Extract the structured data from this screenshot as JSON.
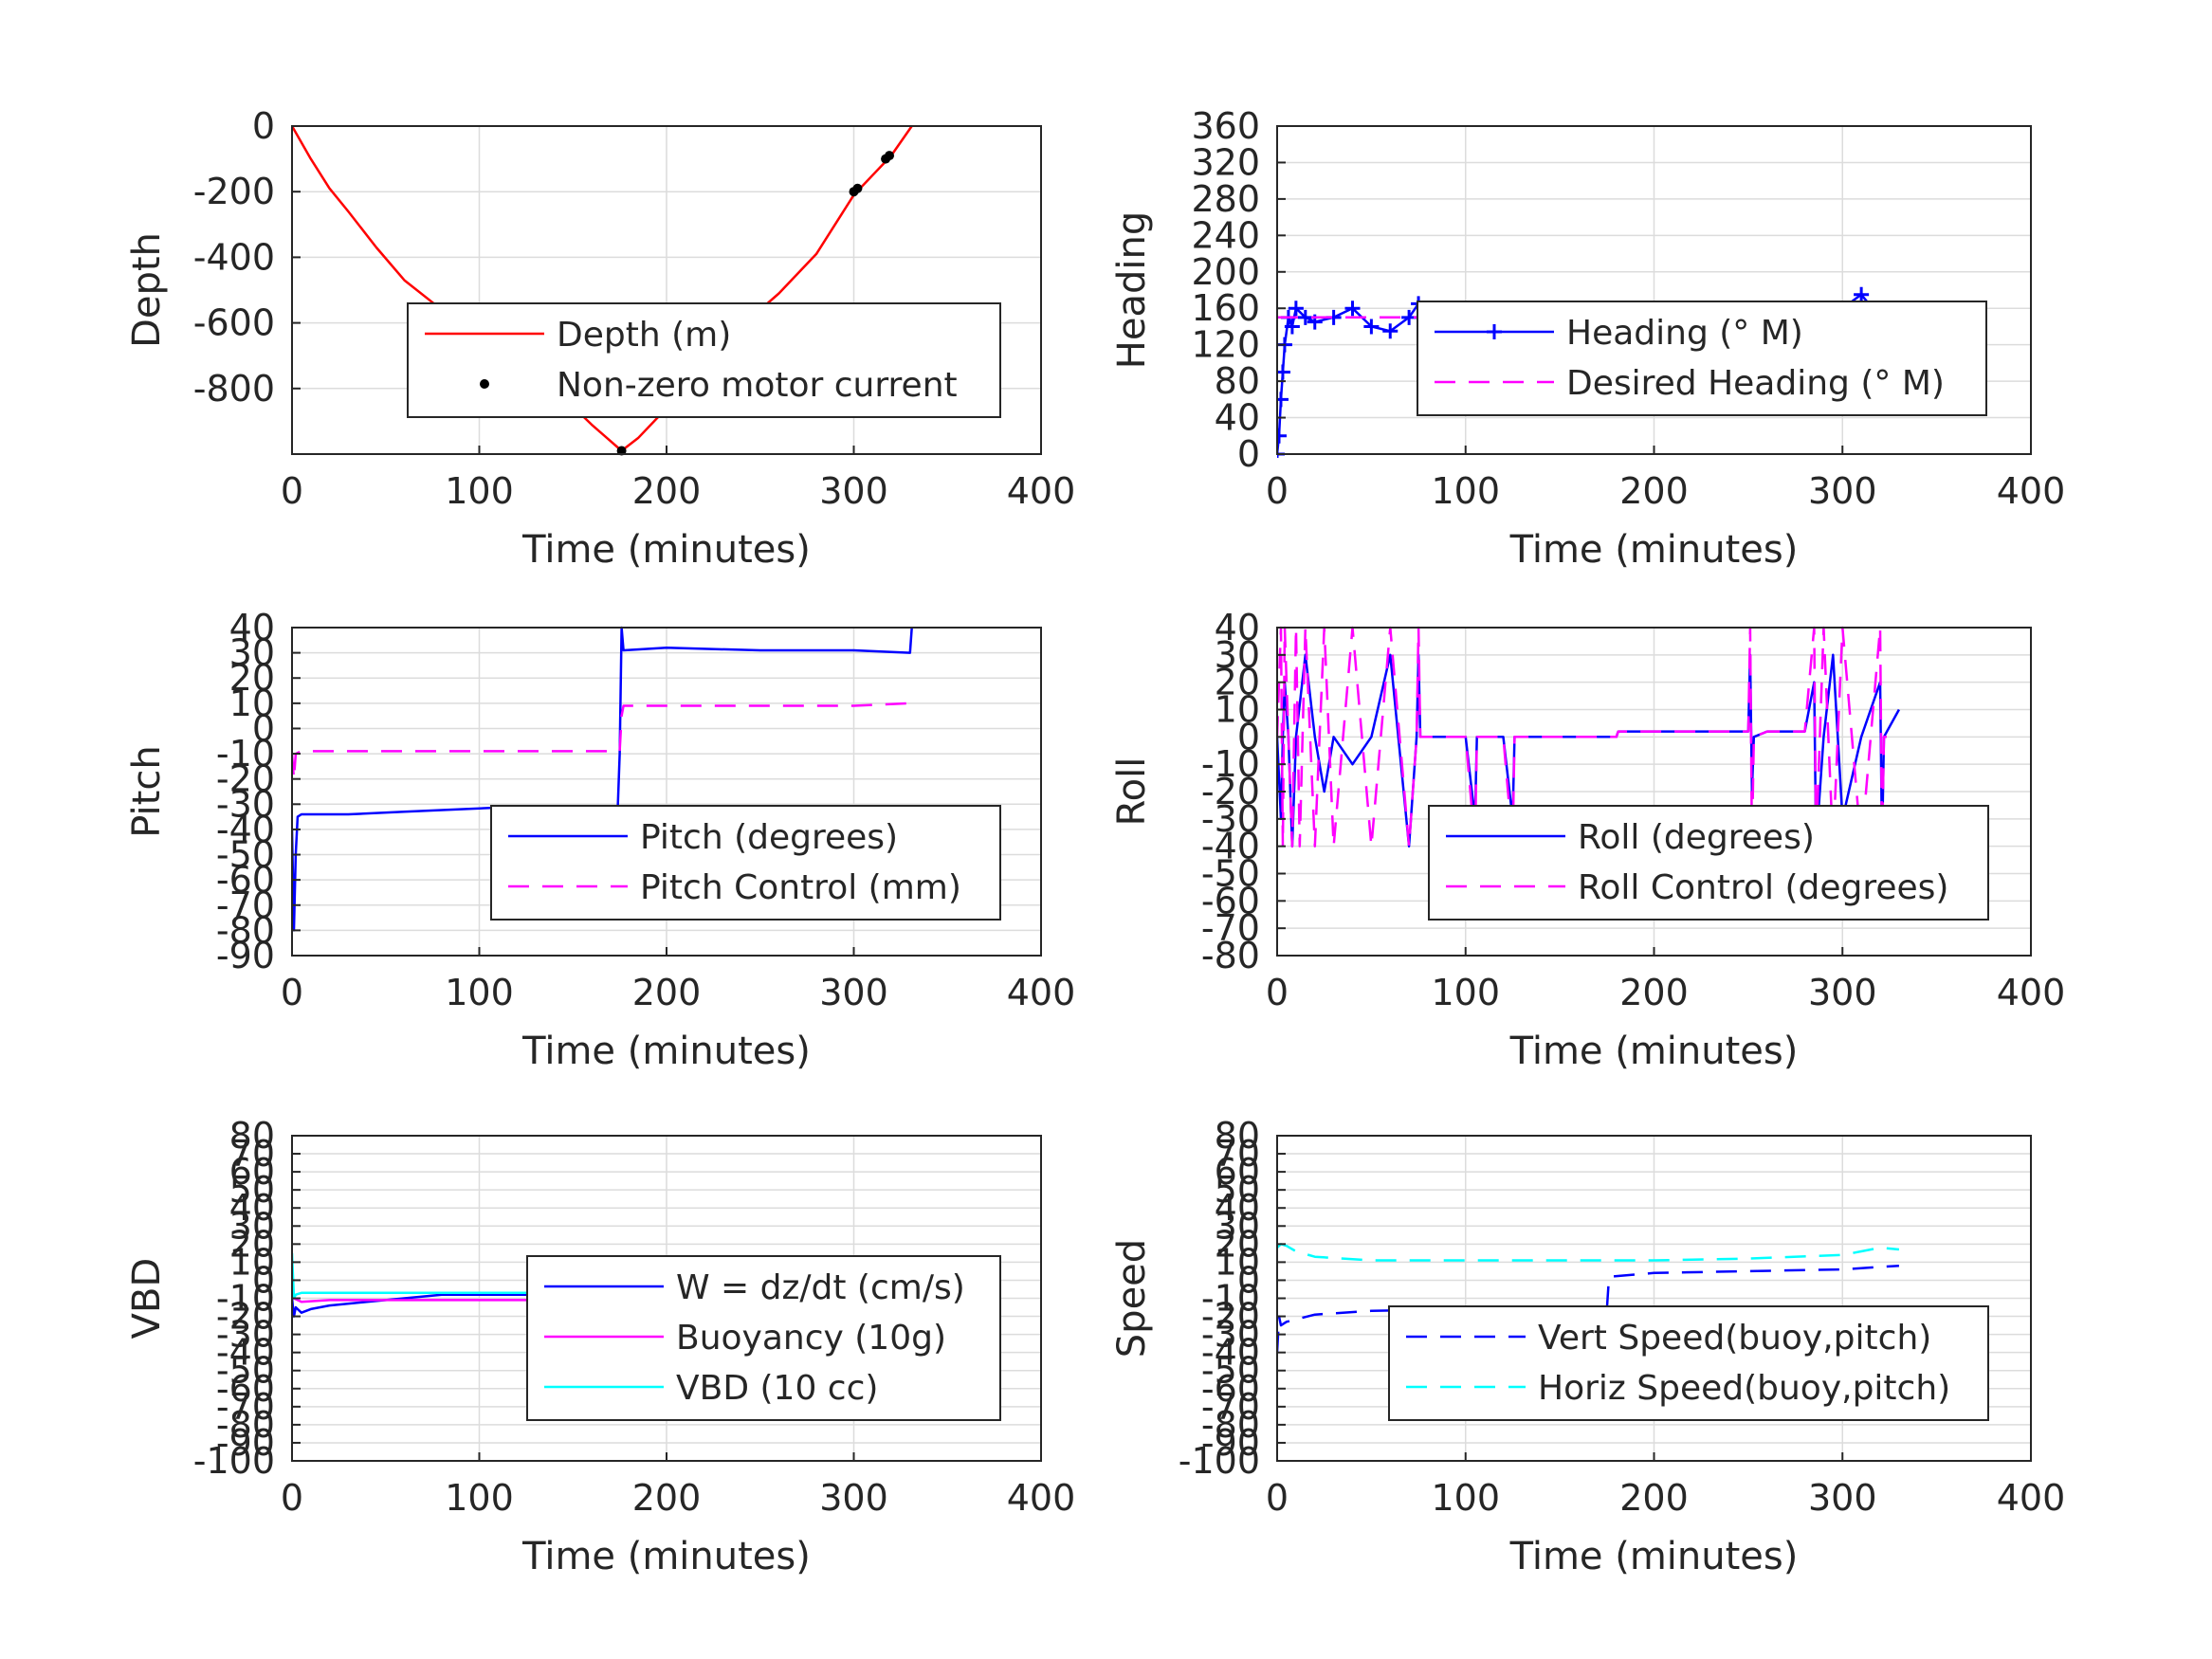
{
  "figure": {
    "background": "#ffffff",
    "grid_color": "#dcdcdc",
    "axis_color": "#262626"
  },
  "chart_data": [
    {
      "id": "depth",
      "type": "line",
      "xlabel": "Time (minutes)",
      "ylabel": "Depth",
      "xlim": [
        0,
        400
      ],
      "ylim": [
        -1000,
        0
      ],
      "xticks": [
        0,
        100,
        200,
        300,
        400
      ],
      "yticks": [
        -800,
        -600,
        -400,
        -200,
        0
      ],
      "grid": true,
      "legend": {
        "placement": "center-right",
        "columns": 1
      },
      "series": [
        {
          "name": "Depth (m)",
          "color": "#ff0000",
          "style": "solid",
          "x": [
            0,
            10,
            20,
            30,
            45,
            60,
            80,
            100,
            120,
            140,
            160,
            170,
            176,
            185,
            200,
            220,
            240,
            260,
            280,
            300,
            320,
            331
          ],
          "y": [
            0,
            -100,
            -190,
            -260,
            -370,
            -470,
            -560,
            -640,
            -710,
            -800,
            -910,
            -960,
            -990,
            -950,
            -860,
            -730,
            -610,
            -510,
            -390,
            -210,
            -90,
            0
          ]
        },
        {
          "name": "Non-zero motor current",
          "color": "#000000",
          "style": "dots",
          "x": [
            176,
            300,
            302,
            317,
            319
          ],
          "y": [
            -990,
            -200,
            -190,
            -100,
            -90
          ]
        }
      ]
    },
    {
      "id": "heading",
      "type": "line",
      "xlabel": "Time (minutes)",
      "ylabel": "Heading",
      "xlim": [
        0,
        400
      ],
      "ylim": [
        0,
        360
      ],
      "xticks": [
        0,
        100,
        200,
        300,
        400
      ],
      "yticks": [
        0,
        40,
        80,
        120,
        160,
        200,
        240,
        280,
        320,
        360
      ],
      "grid": true,
      "legend": {
        "placement": "center-right",
        "columns": 1
      },
      "series": [
        {
          "name": "Heading (° M)",
          "color": "#0000ff",
          "style": "plus",
          "x": [
            0,
            1,
            2,
            3,
            4,
            6,
            8,
            10,
            15,
            20,
            30,
            40,
            50,
            60,
            70,
            75,
            80,
            90,
            100,
            110,
            120,
            125,
            130,
            135,
            140,
            150,
            160,
            170,
            180,
            190,
            200,
            210,
            220,
            230,
            240,
            250,
            260,
            270,
            280,
            290,
            300,
            310,
            320,
            330
          ],
          "y": [
            0,
            20,
            60,
            90,
            120,
            150,
            140,
            160,
            150,
            145,
            150,
            160,
            140,
            135,
            150,
            165,
            150,
            130,
            145,
            150,
            140,
            120,
            90,
            110,
            150,
            145,
            150,
            160,
            140,
            150,
            155,
            140,
            135,
            150,
            145,
            140,
            150,
            145,
            150,
            155,
            160,
            175,
            150,
            140
          ]
        },
        {
          "name": "Desired Heading (° M)",
          "color": "#ff00ff",
          "style": "dashed",
          "x": [
            0,
            331
          ],
          "y": [
            150,
            150
          ]
        }
      ]
    },
    {
      "id": "pitch",
      "type": "line",
      "xlabel": "Time (minutes)",
      "ylabel": "Pitch",
      "xlim": [
        0,
        400
      ],
      "ylim": [
        -90,
        40
      ],
      "xticks": [
        0,
        100,
        200,
        300,
        400
      ],
      "yticks": [
        -90,
        -80,
        -70,
        -60,
        -50,
        -40,
        -30,
        -20,
        -10,
        0,
        10,
        20,
        30,
        40
      ],
      "grid": true,
      "legend": {
        "placement": "bottom-right",
        "columns": 1
      },
      "series": [
        {
          "name": "Pitch (degrees)",
          "color": "#0000ff",
          "style": "solid",
          "x": [
            0,
            1,
            2,
            3,
            5,
            10,
            30,
            60,
            90,
            120,
            150,
            174,
            175,
            176,
            177,
            200,
            250,
            300,
            330,
            331
          ],
          "y": [
            -40,
            -80,
            -50,
            -35,
            -34,
            -34,
            -34,
            -33,
            -32,
            -31,
            -32,
            -31,
            -10,
            40,
            31,
            32,
            31,
            31,
            30,
            40
          ]
        },
        {
          "name": "Pitch Control (mm)",
          "color": "#ff00ff",
          "style": "dashed",
          "x": [
            0,
            1,
            2,
            5,
            50,
            100,
            150,
            175,
            176,
            177,
            200,
            250,
            300,
            331
          ],
          "y": [
            -10,
            -20,
            -10,
            -9,
            -9,
            -9,
            -9,
            -9,
            5,
            9,
            9,
            9,
            9,
            10
          ]
        }
      ]
    },
    {
      "id": "roll",
      "type": "line",
      "xlabel": "Time (minutes)",
      "ylabel": "Roll",
      "xlim": [
        0,
        400
      ],
      "ylim": [
        -80,
        40
      ],
      "xticks": [
        0,
        100,
        200,
        300,
        400
      ],
      "yticks": [
        -80,
        -70,
        -60,
        -50,
        -40,
        -30,
        -20,
        -10,
        0,
        10,
        20,
        30,
        40
      ],
      "grid": true,
      "legend": {
        "placement": "bottom-right",
        "columns": 1
      },
      "series": [
        {
          "name": "Roll (degrees)",
          "color": "#0000ff",
          "style": "solid",
          "x": [
            0,
            2,
            3,
            4,
            6,
            8,
            10,
            15,
            20,
            25,
            30,
            40,
            50,
            60,
            70,
            74,
            75,
            76,
            80,
            90,
            100,
            105,
            106,
            110,
            120,
            125,
            126,
            130,
            170,
            180,
            181,
            200,
            240,
            250,
            251,
            252,
            253,
            260,
            280,
            285,
            286,
            290,
            295,
            300,
            310,
            320,
            321,
            322,
            330
          ],
          "y": [
            0,
            -30,
            0,
            20,
            0,
            -40,
            0,
            30,
            0,
            -20,
            0,
            -10,
            0,
            30,
            -40,
            0,
            30,
            0,
            0,
            0,
            0,
            -30,
            0,
            0,
            0,
            -30,
            0,
            0,
            0,
            0,
            2,
            2,
            2,
            2,
            30,
            -20,
            0,
            2,
            2,
            20,
            -40,
            0,
            30,
            -30,
            0,
            20,
            -40,
            0,
            10
          ]
        },
        {
          "name": "Roll Control (degrees)",
          "color": "#ff00ff",
          "style": "dashed",
          "x": [
            0,
            2,
            3,
            4,
            6,
            8,
            10,
            12,
            15,
            20,
            25,
            30,
            40,
            50,
            60,
            70,
            74,
            75,
            76,
            80,
            100,
            105,
            106,
            110,
            120,
            125,
            126,
            130,
            170,
            180,
            181,
            240,
            250,
            251,
            252,
            253,
            260,
            270,
            280,
            285,
            286,
            290,
            295,
            300,
            310,
            320,
            321,
            322,
            330
          ],
          "y": [
            0,
            40,
            -40,
            40,
            0,
            -40,
            40,
            -40,
            40,
            -40,
            40,
            -40,
            40,
            -40,
            40,
            -40,
            0,
            40,
            0,
            0,
            0,
            -40,
            0,
            0,
            0,
            -40,
            0,
            0,
            0,
            0,
            2,
            2,
            2,
            40,
            -40,
            0,
            2,
            2,
            2,
            40,
            -40,
            40,
            -40,
            40,
            -40,
            40,
            -40,
            0,
            0
          ]
        }
      ]
    },
    {
      "id": "vbd",
      "type": "line",
      "xlabel": "Time (minutes)",
      "ylabel": "VBD",
      "xlim": [
        0,
        400
      ],
      "ylim": [
        -100,
        80
      ],
      "xticks": [
        0,
        100,
        200,
        300,
        400
      ],
      "yticks": [
        -100,
        -90,
        -80,
        -70,
        -60,
        -50,
        -40,
        -30,
        -20,
        -10,
        0,
        10,
        20,
        30,
        40,
        50,
        60,
        70,
        80
      ],
      "grid": true,
      "legend": {
        "placement": "center-right",
        "columns": 1
      },
      "series": [
        {
          "name": "W = dz/dt (cm/s)",
          "color": "#0000ff",
          "style": "solid",
          "x": [
            0,
            1,
            2,
            5,
            10,
            20,
            40,
            60,
            80,
            100,
            130,
            160,
            175,
            176,
            177,
            200,
            250,
            300,
            330,
            331
          ],
          "y": [
            -10,
            -20,
            -15,
            -18,
            -16,
            -14,
            -12,
            -10,
            -8,
            -8,
            -8,
            -8,
            -8,
            0,
            5,
            6,
            7,
            8,
            8,
            7
          ]
        },
        {
          "name": "Buoyancy (10g)",
          "color": "#ff00ff",
          "style": "solid",
          "x": [
            0,
            1,
            5,
            20,
            50,
            100,
            150,
            175,
            176,
            177,
            200,
            250,
            300,
            331
          ],
          "y": [
            -5,
            -10,
            -12,
            -11,
            -11,
            -11,
            -11,
            -11,
            -5,
            3,
            3,
            4,
            4,
            5
          ]
        },
        {
          "name": "VBD (10 cc)",
          "color": "#00ffff",
          "style": "solid",
          "x": [
            0,
            1,
            2,
            5,
            50,
            100,
            150,
            175,
            176,
            177,
            200,
            250,
            300,
            331
          ],
          "y": [
            15,
            -10,
            -8,
            -7,
            -7,
            -7,
            -7,
            -7,
            0,
            0,
            0,
            1,
            1,
            2
          ]
        }
      ]
    },
    {
      "id": "speed",
      "type": "line",
      "xlabel": "Time (minutes)",
      "ylabel": "Speed",
      "xlim": [
        0,
        400
      ],
      "ylim": [
        -100,
        80
      ],
      "xticks": [
        0,
        100,
        200,
        300,
        400
      ],
      "yticks": [
        -100,
        -90,
        -80,
        -70,
        -60,
        -50,
        -40,
        -30,
        -20,
        -10,
        0,
        10,
        20,
        30,
        40,
        50,
        60,
        70,
        80
      ],
      "grid": true,
      "legend": {
        "placement": "bottom-right",
        "columns": 1
      },
      "series": [
        {
          "name": "Vert Speed(buoy,pitch)",
          "color": "#0000ff",
          "style": "dashed",
          "x": [
            0,
            1,
            2,
            5,
            20,
            50,
            100,
            150,
            175,
            176,
            177,
            200,
            250,
            300,
            330
          ],
          "y": [
            -40,
            -20,
            -25,
            -23,
            -19,
            -17,
            -16,
            -16,
            -16,
            0,
            2,
            4,
            5,
            6,
            8
          ]
        },
        {
          "name": "Horiz Speed(buoy,pitch)",
          "color": "#00ffff",
          "style": "dashed",
          "x": [
            0,
            2,
            5,
            10,
            20,
            50,
            100,
            150,
            200,
            250,
            300,
            310,
            320,
            330
          ],
          "y": [
            18,
            20,
            19,
            16,
            13,
            11,
            11,
            11,
            11,
            12,
            14,
            16,
            18,
            17
          ]
        }
      ]
    }
  ]
}
